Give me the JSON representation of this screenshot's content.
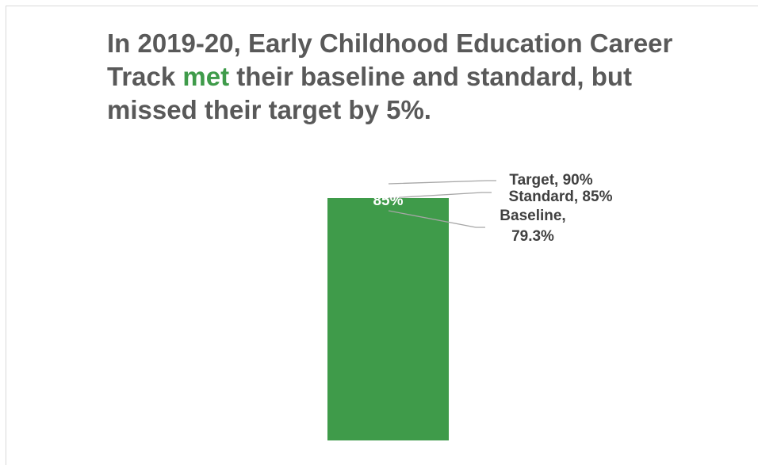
{
  "headline": {
    "part1": "In 2019-20, Early Childhood Education Career Track ",
    "highlight": "met",
    "part2": " their baseline and standard, but missed their target by 5%."
  },
  "colors": {
    "bar": "#3f9b4a",
    "title_text": "#595959",
    "highlight": "#3f9b4a",
    "leader_line": "#a6a6a6",
    "callout_text": "#404040"
  },
  "chart_data": {
    "type": "bar",
    "categories": [
      ""
    ],
    "values": [
      85
    ],
    "data_labels": [
      "85%"
    ],
    "ylim": [
      0,
      90
    ],
    "grid": false,
    "annotations": [
      {
        "name": "Target",
        "value": 90,
        "label_lines": [
          "Target, 90%"
        ]
      },
      {
        "name": "Standard",
        "value": 85,
        "label_lines": [
          "Standard, 85%"
        ]
      },
      {
        "name": "Baseline",
        "value": 79.3,
        "label_lines": [
          "Baseline,",
          "79.3%"
        ]
      }
    ]
  }
}
